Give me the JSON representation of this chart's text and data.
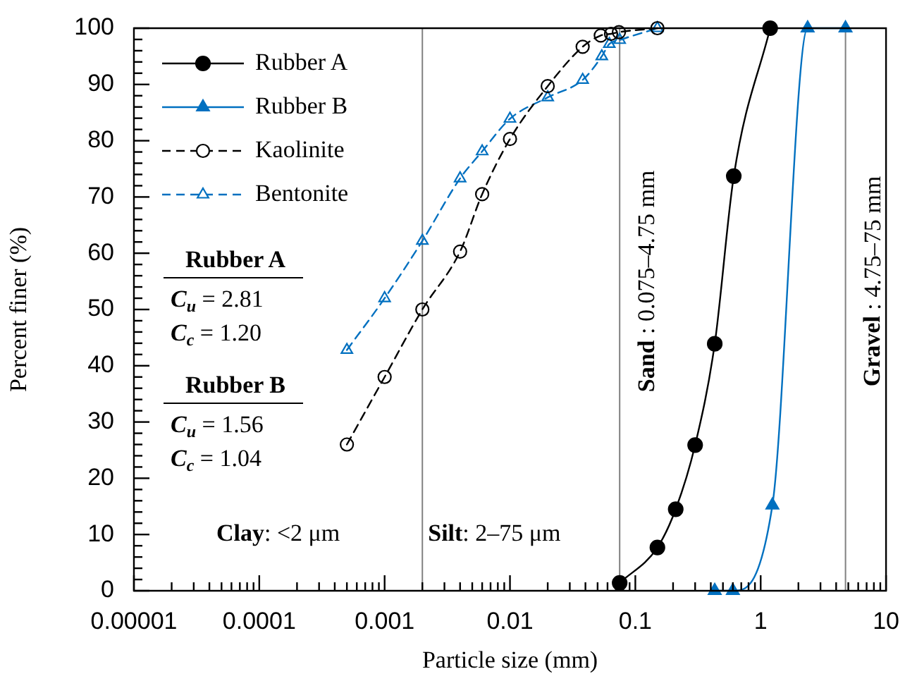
{
  "chart_data": {
    "type": "line",
    "xlabel": "Particle size (mm)",
    "ylabel": "Percent finer (%)",
    "log": "x",
    "legend": "top left",
    "xlim": [
      1e-05,
      10
    ],
    "ylim": [
      0,
      100
    ],
    "xticks": [
      {
        "value": 1e-05,
        "label": "0.00001"
      },
      {
        "value": 2e-05,
        "label": null
      },
      {
        "value": 3e-05,
        "label": null
      },
      {
        "value": 4e-05,
        "label": null
      },
      {
        "value": 5e-05,
        "label": null
      },
      {
        "value": 6e-05,
        "label": null
      },
      {
        "value": 7e-05,
        "label": null
      },
      {
        "value": 8e-05,
        "label": null
      },
      {
        "value": 9e-05,
        "label": null
      },
      {
        "value": 0.0001,
        "label": "0.0001"
      },
      {
        "value": 0.0002,
        "label": null
      },
      {
        "value": 0.0003,
        "label": null
      },
      {
        "value": 0.0004,
        "label": null
      },
      {
        "value": 0.0005,
        "label": null
      },
      {
        "value": 0.0006,
        "label": null
      },
      {
        "value": 0.0007,
        "label": null
      },
      {
        "value": 0.0008,
        "label": null
      },
      {
        "value": 0.0009,
        "label": null
      },
      {
        "value": 0.001,
        "label": "0.001"
      },
      {
        "value": 0.002,
        "label": null
      },
      {
        "value": 0.003,
        "label": null
      },
      {
        "value": 0.004,
        "label": null
      },
      {
        "value": 0.005,
        "label": null
      },
      {
        "value": 0.006,
        "label": null
      },
      {
        "value": 0.007,
        "label": null
      },
      {
        "value": 0.008,
        "label": null
      },
      {
        "value": 0.009,
        "label": null
      },
      {
        "value": 0.01,
        "label": "0.01"
      },
      {
        "value": 0.02,
        "label": null
      },
      {
        "value": 0.03,
        "label": null
      },
      {
        "value": 0.04,
        "label": null
      },
      {
        "value": 0.05,
        "label": null
      },
      {
        "value": 0.06,
        "label": null
      },
      {
        "value": 0.07,
        "label": null
      },
      {
        "value": 0.08,
        "label": null
      },
      {
        "value": 0.09,
        "label": null
      },
      {
        "value": 0.1,
        "label": "0.1"
      },
      {
        "value": 0.2,
        "label": null
      },
      {
        "value": 0.3,
        "label": null
      },
      {
        "value": 0.4,
        "label": null
      },
      {
        "value": 0.5,
        "label": null
      },
      {
        "value": 0.6,
        "label": null
      },
      {
        "value": 0.7,
        "label": null
      },
      {
        "value": 0.8,
        "label": null
      },
      {
        "value": 0.9,
        "label": null
      },
      {
        "value": 1,
        "label": "1"
      },
      {
        "value": 2,
        "label": null
      },
      {
        "value": 3,
        "label": null
      },
      {
        "value": 4,
        "label": null
      },
      {
        "value": 5,
        "label": null
      },
      {
        "value": 6,
        "label": null
      },
      {
        "value": 7,
        "label": null
      },
      {
        "value": 8,
        "label": null
      },
      {
        "value": 9,
        "label": null
      },
      {
        "value": 10,
        "label": "10"
      }
    ],
    "yticks": [
      0,
      {
        "value": 2,
        "label": null
      },
      {
        "value": 4,
        "label": null
      },
      {
        "value": 6,
        "label": null
      },
      {
        "value": 8,
        "label": null
      },
      10,
      {
        "value": 12,
        "label": null
      },
      {
        "value": 14,
        "label": null
      },
      {
        "value": 16,
        "label": null
      },
      {
        "value": 18,
        "label": null
      },
      20,
      {
        "value": 22,
        "label": null
      },
      {
        "value": 24,
        "label": null
      },
      {
        "value": 26,
        "label": null
      },
      {
        "value": 28,
        "label": null
      },
      30,
      {
        "value": 32,
        "label": null
      },
      {
        "value": 34,
        "label": null
      },
      {
        "value": 36,
        "label": null
      },
      {
        "value": 38,
        "label": null
      },
      40,
      {
        "value": 42,
        "label": null
      },
      {
        "value": 44,
        "label": null
      },
      {
        "value": 46,
        "label": null
      },
      {
        "value": 48,
        "label": null
      },
      50,
      {
        "value": 52,
        "label": null
      },
      {
        "value": 54,
        "label": null
      },
      {
        "value": 56,
        "label": null
      },
      {
        "value": 58,
        "label": null
      },
      60,
      {
        "value": 62,
        "label": null
      },
      {
        "value": 64,
        "label": null
      },
      {
        "value": 66,
        "label": null
      },
      {
        "value": 68,
        "label": null
      },
      70,
      {
        "value": 72,
        "label": null
      },
      {
        "value": 74,
        "label": null
      },
      {
        "value": 76,
        "label": null
      },
      {
        "value": 78,
        "label": null
      },
      80,
      {
        "value": 82,
        "label": null
      },
      {
        "value": 84,
        "label": null
      },
      {
        "value": 86,
        "label": null
      },
      {
        "value": 88,
        "label": null
      },
      90,
      {
        "value": 92,
        "label": null
      },
      {
        "value": 94,
        "label": null
      },
      {
        "value": 96,
        "label": null
      },
      {
        "value": 98,
        "label": null
      },
      100
    ],
    "series": [
      {
        "name": "Rubber A",
        "color": "#000000",
        "marker": "circle",
        "line_style": "solid",
        "x": [
          0.075,
          0.15,
          0.21,
          0.3,
          0.43,
          0.61,
          1.19
        ],
        "values": [
          1.4,
          7.7,
          14.5,
          25.9,
          43.9,
          73.7,
          100
        ]
      },
      {
        "name": "Rubber B",
        "color": "#0070c0",
        "marker": "triangle",
        "line_style": "solid",
        "x": [
          0.43,
          0.6,
          1.24,
          2.37,
          4.75
        ],
        "values": [
          0,
          0,
          15.2,
          100,
          100
        ]
      },
      {
        "name": "Kaolinite",
        "color": "#000000",
        "marker": "circle",
        "line_style": "dashed",
        "x": [
          0.0005,
          0.001,
          0.002,
          0.004,
          0.006,
          0.01,
          0.02,
          0.038,
          0.053,
          0.064,
          0.074,
          0.15
        ],
        "values": [
          26,
          38,
          50,
          60.3,
          70.5,
          80.3,
          89.7,
          96.7,
          98.7,
          99,
          99.3,
          100
        ]
      },
      {
        "name": "Bentonite",
        "color": "#0070c0",
        "marker": "triangle",
        "line_style": "dashed",
        "x": [
          0.0005,
          0.001,
          0.002,
          0.004,
          0.006,
          0.01,
          0.02,
          0.038,
          0.054,
          0.062,
          0.075,
          0.15
        ],
        "values": [
          42.8,
          52,
          62.2,
          73.3,
          78.1,
          83.9,
          87.7,
          90.8,
          95,
          97.2,
          97.9,
          100
        ]
      }
    ],
    "ref_lines": [
      {
        "axis": "x",
        "value": 0.002,
        "label": "Silt: 2–75 μm",
        "color": "#808080"
      },
      {
        "axis": "x",
        "value": 0.075,
        "label": "Sand : 0.075–4.75 mm",
        "color": "#808080"
      },
      {
        "axis": "x",
        "value": 4.75,
        "label": "Gravel : 4.75–75 mm",
        "color": "#808080"
      }
    ],
    "annotations": [
      "Clay: <2 μm",
      "Rubber A",
      "C$_{u}$ = 2.81",
      "C$_{c}$ = 1.20",
      "Rubber B",
      "C$_{u}$ = 1.56",
      "C$_{c}$ = 1.04"
    ]
  }
}
